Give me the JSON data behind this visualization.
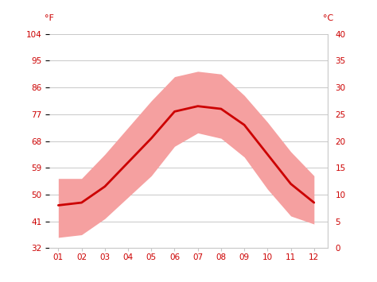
{
  "months": [
    1,
    2,
    3,
    4,
    5,
    6,
    7,
    8,
    9,
    10,
    11,
    12
  ],
  "month_labels": [
    "01",
    "02",
    "03",
    "04",
    "05",
    "06",
    "07",
    "08",
    "09",
    "10",
    "11",
    "12"
  ],
  "mean_c": [
    8.0,
    8.5,
    11.5,
    16.0,
    20.5,
    25.5,
    26.5,
    26.0,
    23.0,
    17.5,
    12.0,
    8.5
  ],
  "max_c": [
    13.0,
    13.0,
    17.5,
    22.5,
    27.5,
    32.0,
    33.0,
    32.5,
    28.5,
    23.5,
    18.0,
    13.5
  ],
  "min_c": [
    2.0,
    2.5,
    5.5,
    9.5,
    13.5,
    19.0,
    21.5,
    20.5,
    17.0,
    11.0,
    6.0,
    4.5
  ],
  "ylim_c": [
    0,
    40
  ],
  "yticks_c": [
    0,
    5,
    10,
    15,
    20,
    25,
    30,
    35,
    40
  ],
  "yticks_f": [
    32,
    41,
    50,
    59,
    68,
    77,
    86,
    95,
    104
  ],
  "line_color": "#cc0000",
  "band_color": "#f5a0a0",
  "grid_color": "#c8c8c8",
  "bg_color": "#ffffff",
  "label_color": "#cc0000",
  "tick_label_size": 7.5,
  "unit_label_size": 8
}
